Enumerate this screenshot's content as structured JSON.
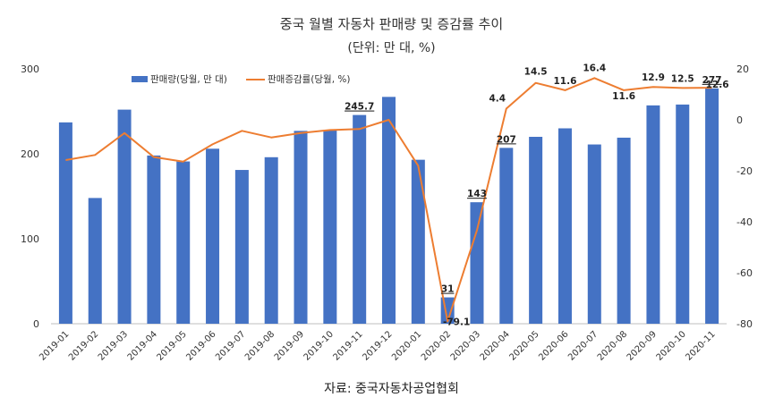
{
  "page": {
    "title": "중국 월별 자동차 판매량 및 증감률 추이",
    "unit": "(단위: 만 대, %)",
    "source": "자료: 중국자동차공업협회"
  },
  "chart_data": {
    "type": "bar+line",
    "categories": [
      "2019-01",
      "2019-02",
      "2019-03",
      "2019-04",
      "2019-05",
      "2019-06",
      "2019-07",
      "2019-08",
      "2019-09",
      "2019-10",
      "2019-11",
      "2019-12",
      "2020-01",
      "2020-02",
      "2020-03",
      "2020-04",
      "2020-05",
      "2020-06",
      "2020-07",
      "2020-08",
      "2020-09",
      "2020-10",
      "2020-11"
    ],
    "series": [
      {
        "name": "판매량(당월, 만 대)",
        "kind": "bar",
        "axis": "left",
        "color": "#4472C4",
        "values": [
          237,
          148,
          252,
          198,
          191,
          206,
          181,
          196,
          227,
          228,
          245.7,
          267,
          193,
          31,
          143,
          207,
          220,
          230,
          211,
          219,
          257,
          258,
          277
        ]
      },
      {
        "name": "판매증감률(당월, %)",
        "kind": "line",
        "axis": "right",
        "color": "#ED7D31",
        "values": [
          -15.8,
          -13.8,
          -5.2,
          -14.6,
          -16.4,
          -9.6,
          -4.3,
          -6.9,
          -5.2,
          -4.0,
          -3.6,
          0,
          -18.0,
          -79.1,
          -43.3,
          4.4,
          14.5,
          11.6,
          16.4,
          11.6,
          12.9,
          12.5,
          12.6
        ]
      }
    ],
    "bar_labels": [
      {
        "index": 10,
        "text": "245.7"
      },
      {
        "index": 13,
        "text": "31"
      },
      {
        "index": 14,
        "text": "143"
      },
      {
        "index": 15,
        "text": "207"
      },
      {
        "index": 22,
        "text": "277"
      }
    ],
    "line_labels": [
      {
        "index": 13,
        "text": "-79.1"
      },
      {
        "index": 15,
        "text": "4.4"
      },
      {
        "index": 16,
        "text": "14.5"
      },
      {
        "index": 17,
        "text": "11.6"
      },
      {
        "index": 18,
        "text": "16.4"
      },
      {
        "index": 19,
        "text": "11.6"
      },
      {
        "index": 20,
        "text": "12.9"
      },
      {
        "index": 21,
        "text": "12.5"
      },
      {
        "index": 22,
        "text": "12.6"
      }
    ],
    "y_left": {
      "min": 0,
      "max": 300,
      "ticks": [
        0,
        100,
        200,
        300
      ]
    },
    "y_right": {
      "min": -80,
      "max": 20,
      "ticks": [
        20,
        0,
        -20,
        -40,
        -60,
        -80
      ]
    },
    "grid": false,
    "legend_position": "top-left"
  }
}
